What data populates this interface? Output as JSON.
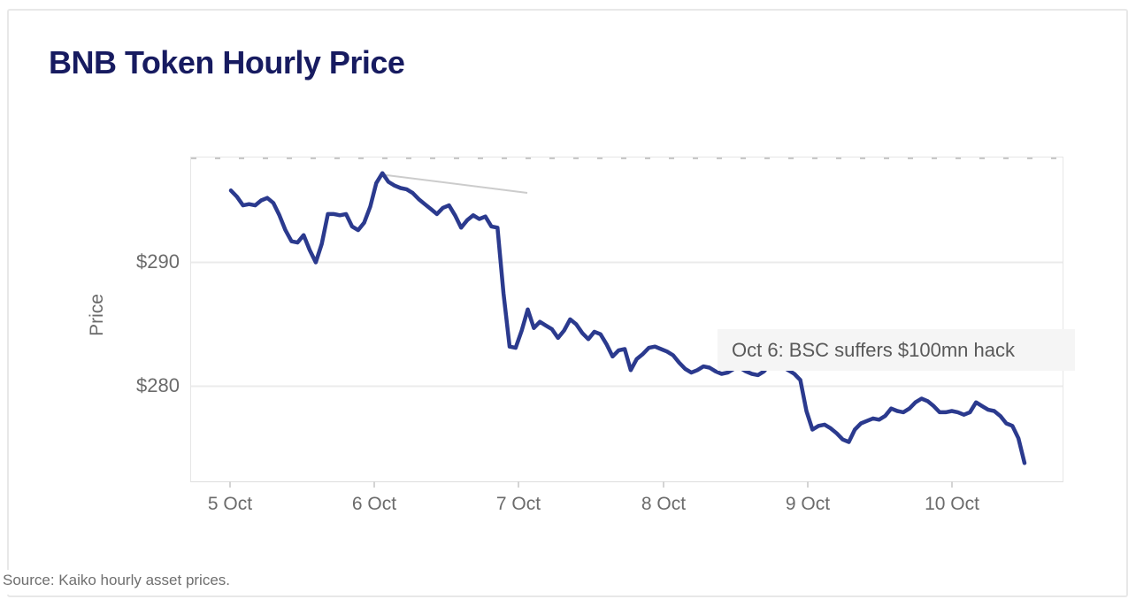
{
  "title": "BNB Token Hourly Price",
  "source": "Source: Kaiko hourly asset prices.",
  "annotation": {
    "text": "Oct 6: BSC suffers $100mn hack"
  },
  "y_axis": {
    "label": "Price",
    "ticks": [
      "$290",
      "$280"
    ]
  },
  "x_axis": {
    "ticks": [
      "5 Oct",
      "6 Oct",
      "7 Oct",
      "8 Oct",
      "9 Oct",
      "10 Oct"
    ]
  },
  "colors": {
    "line": "#2b3a8e",
    "title": "#171b60",
    "axis_text": "#6b6b6b",
    "grid": "#ebebeb",
    "annotation_bg": "#f5f5f5",
    "annotation_text": "#595959",
    "connector": "#cccccc",
    "card_border": "#e8e8e8"
  },
  "chart_data": {
    "type": "line",
    "title": "BNB Token Hourly Price",
    "xlabel": "",
    "ylabel": "Price",
    "x_unit": "hourly points from 5 Oct 00:00 to 10 Oct ~11:00",
    "x_tick_labels": [
      "5 Oct",
      "6 Oct",
      "7 Oct",
      "8 Oct",
      "9 Oct",
      "10 Oct"
    ],
    "y_ticks": [
      {
        "value": 290,
        "label": "$290"
      },
      {
        "value": 280,
        "label": "$280"
      }
    ],
    "ylim": [
      272.3,
      298.5
    ],
    "grid": "horizontal gridlines at $280 and $290 only",
    "legend": "none",
    "annotation": {
      "text": "Oct 6: BSC suffers $100mn hack",
      "anchor_index": 25,
      "anchor_value": 297.2
    },
    "series": [
      {
        "name": "BNB token hourly price (USD)",
        "color": "#2b3a8e",
        "values": [
          295.8,
          295.3,
          294.6,
          294.7,
          294.6,
          295.0,
          295.2,
          294.8,
          293.8,
          292.6,
          291.7,
          291.6,
          292.2,
          291.0,
          290.0,
          291.5,
          293.9,
          293.9,
          293.8,
          293.9,
          292.9,
          292.6,
          293.2,
          294.5,
          296.4,
          297.2,
          296.5,
          296.2,
          296.0,
          295.9,
          295.6,
          295.1,
          294.7,
          294.3,
          293.9,
          294.4,
          294.6,
          293.8,
          292.8,
          293.4,
          293.8,
          293.5,
          293.7,
          292.9,
          292.8,
          287.5,
          283.2,
          283.1,
          284.5,
          286.2,
          284.7,
          285.2,
          284.9,
          284.6,
          283.9,
          284.5,
          285.4,
          285.0,
          284.3,
          283.8,
          284.4,
          284.2,
          283.4,
          282.4,
          282.9,
          283.0,
          281.3,
          282.2,
          282.6,
          283.1,
          283.2,
          283.0,
          282.8,
          282.5,
          281.9,
          281.4,
          281.1,
          281.3,
          281.6,
          281.5,
          281.2,
          281.0,
          281.1,
          281.4,
          281.5,
          281.2,
          281.0,
          280.9,
          281.2,
          281.8,
          281.9,
          281.6,
          281.3,
          281.0,
          280.5,
          278.0,
          276.5,
          276.8,
          276.9,
          276.6,
          276.2,
          275.7,
          275.5,
          276.5,
          277.0,
          277.2,
          277.4,
          277.3,
          277.6,
          278.2,
          278.0,
          277.9,
          278.2,
          278.7,
          279.0,
          278.8,
          278.4,
          277.9,
          277.9,
          278.0,
          277.9,
          277.7,
          277.9,
          278.7,
          278.4,
          278.1,
          278.0,
          277.6,
          277.0,
          276.8,
          275.8,
          273.8
        ]
      }
    ]
  }
}
